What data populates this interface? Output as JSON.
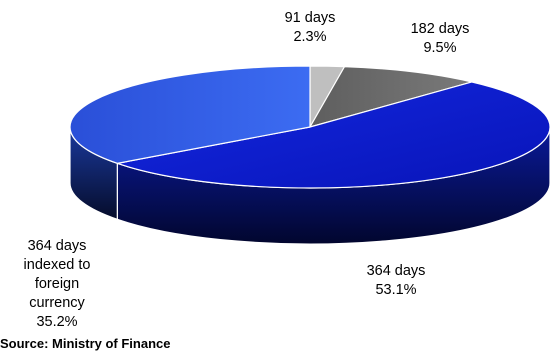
{
  "chart_data": {
    "type": "pie",
    "style": "3d",
    "slices": [
      {
        "label_lines": [
          "91 days"
        ],
        "value_label": "2.3%",
        "value": 2.3,
        "color": "#bfbfbf"
      },
      {
        "label_lines": [
          "182 days"
        ],
        "value_label": "9.5%",
        "value": 9.5,
        "color": "#6e6e6e"
      },
      {
        "label_lines": [
          "364 days"
        ],
        "value_label": "53.1%",
        "value": 53.1,
        "color": "#0b1fd6"
      },
      {
        "label_lines": [
          "364 days",
          "indexed to",
          "foreign",
          "currency"
        ],
        "value_label": "35.2%",
        "value": 35.2,
        "color": "#2f5be6"
      }
    ]
  },
  "footer": {
    "source": "Source: Ministry of Finance"
  }
}
